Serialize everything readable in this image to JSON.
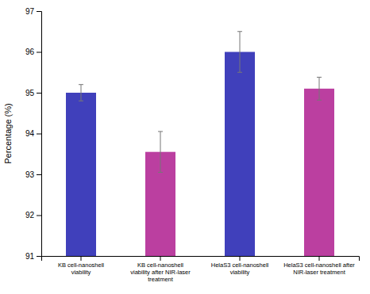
{
  "chart_data": {
    "type": "bar",
    "ylabel": "Percentage (%)",
    "categories": [
      "KB cell-nanoshell\nviability",
      "KB cell-nanoshell\nviability after NIR-laser\ntreatment",
      "HelaS3 cell-nanoshell\nviability",
      "HelaS3 cell-nanoshell after\nNIR-laser treatment"
    ],
    "values": [
      95.0,
      93.55,
      96.0,
      95.1
    ],
    "errors": [
      0.2,
      0.5,
      0.5,
      0.28
    ],
    "colors": [
      "#4040bb",
      "#bb3fa0",
      "#4040bb",
      "#bb3fa0"
    ],
    "ylim": [
      91,
      97
    ],
    "yticks": [
      91,
      92,
      93,
      94,
      95,
      96,
      97
    ],
    "grid": false
  }
}
